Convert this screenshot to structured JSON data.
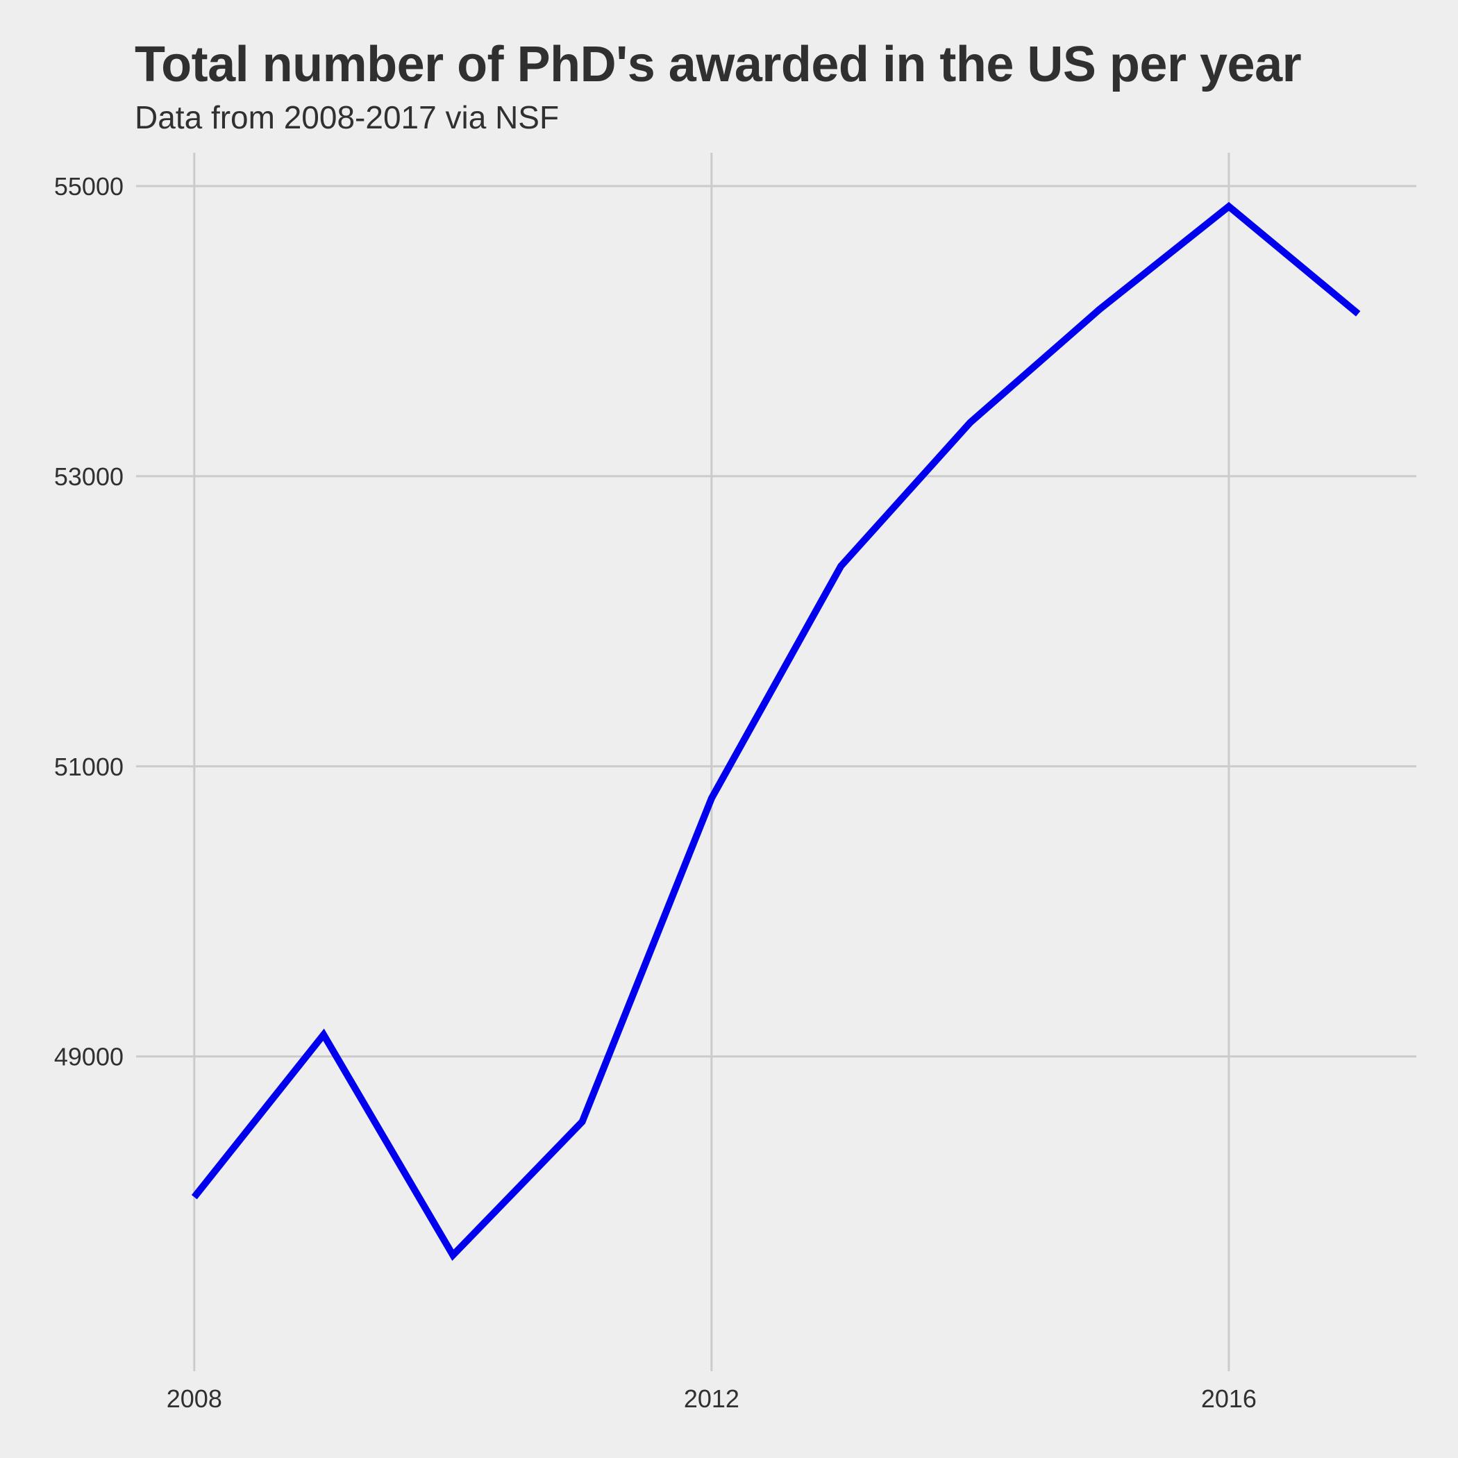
{
  "chart_data": {
    "type": "line",
    "title": "Total number of PhD's awarded in the US per year",
    "subtitle": "Data from 2008-2017 via NSF",
    "xlabel": "",
    "ylabel": "",
    "x": [
      2008,
      2009,
      2010,
      2011,
      2012,
      2013,
      2014,
      2015,
      2016,
      2017
    ],
    "series": [
      {
        "values": [
          48030,
          49150,
          47630,
          48550,
          50780,
          52380,
          53370,
          54150,
          54860,
          54120
        ],
        "color": "#0000ee"
      }
    ],
    "xlim": [
      2007.55,
      2017.45
    ],
    "ylim": [
      46830,
      55230
    ],
    "xticks": [
      2008,
      2012,
      2016
    ],
    "yticks": [
      49000,
      51000,
      53000,
      55000
    ],
    "xtick_labels": [
      "2008",
      "2012",
      "2016"
    ],
    "ytick_labels": [
      "49000",
      "51000",
      "53000",
      "55000"
    ],
    "grid": true,
    "legend": "none",
    "colors": {
      "background": "#eeeeee",
      "grid": "#cbcbcb",
      "text": "#303030"
    }
  }
}
